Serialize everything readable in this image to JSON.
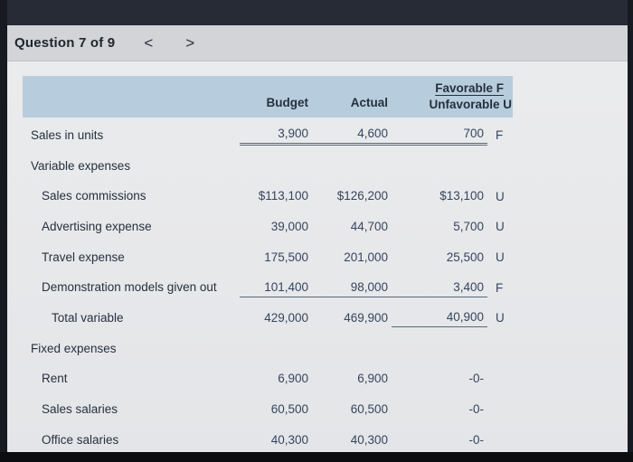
{
  "header": {
    "title": "Question 7 of 9",
    "prev_icon": "<",
    "next_icon": ">"
  },
  "colors": {
    "table_header_bg": "#b7cdde",
    "header_bar_bg": "#d2d4d7",
    "text_dark": "#27303f",
    "bezel_dark": "#171a21"
  },
  "table": {
    "columns": {
      "budget": "Budget",
      "actual": "Actual",
      "favorable": "Favorable F",
      "unfavorable": "Unfavorable U"
    },
    "rows": [
      {
        "label": "Sales in units",
        "indent": 0,
        "budget": "3,900",
        "actual": "4,600",
        "variance": "700",
        "flag": "F",
        "ul": "double"
      },
      {
        "label": "Variable expenses",
        "indent": 0,
        "section": true,
        "budget": "",
        "actual": "",
        "variance": "",
        "flag": ""
      },
      {
        "label": "Sales commissions",
        "indent": 1,
        "budget": "$113,100",
        "actual": "$126,200",
        "variance": "$13,100",
        "flag": "U"
      },
      {
        "label": "Advertising expense",
        "indent": 1,
        "budget": "39,000",
        "actual": "44,700",
        "variance": "5,700",
        "flag": "U"
      },
      {
        "label": "Travel expense",
        "indent": 1,
        "budget": "175,500",
        "actual": "201,000",
        "variance": "25,500",
        "flag": "U"
      },
      {
        "label": "Demonstration models given out",
        "indent": 1,
        "budget": "101,400",
        "actual": "98,000",
        "variance": "3,400",
        "flag": "F",
        "ul": "single"
      },
      {
        "label": "Total variable",
        "indent": 2,
        "budget": "429,000",
        "actual": "469,900",
        "variance": "40,900",
        "flag": "U",
        "ul_variance": "single"
      },
      {
        "label": "Fixed expenses",
        "indent": 0,
        "section": true,
        "budget": "",
        "actual": "",
        "variance": "",
        "flag": ""
      },
      {
        "label": "Rent",
        "indent": 1,
        "budget": "6,900",
        "actual": "6,900",
        "variance": "-0-",
        "flag": ""
      },
      {
        "label": "Sales salaries",
        "indent": 1,
        "budget": "60,500",
        "actual": "60,500",
        "variance": "-0-",
        "flag": ""
      },
      {
        "label": "Office salaries",
        "indent": 1,
        "budget": "40,300",
        "actual": "40,300",
        "variance": "-0-",
        "flag": ""
      }
    ]
  }
}
